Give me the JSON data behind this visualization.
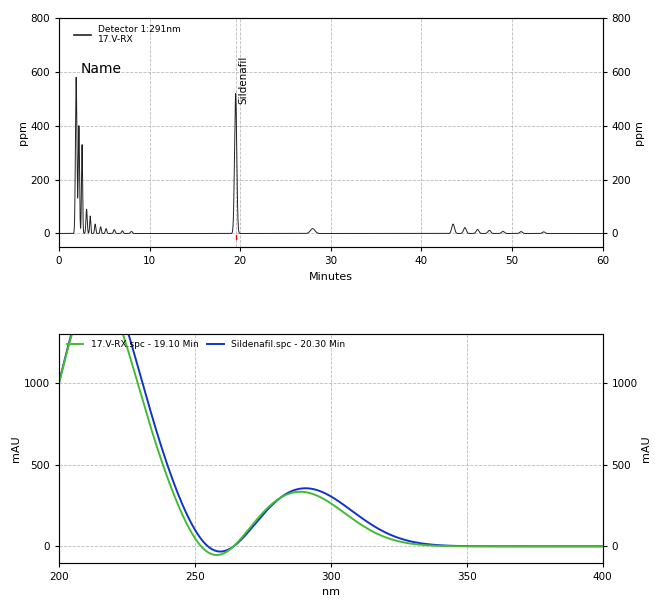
{
  "top_plot": {
    "xlim": [
      0,
      60
    ],
    "ylim": [
      -50,
      800
    ],
    "yticks": [
      0,
      200,
      400,
      600,
      800
    ],
    "xticks": [
      0,
      10,
      20,
      30,
      40,
      50,
      60
    ],
    "xlabel": "Minutes",
    "ylabel_left": "ppm",
    "ylabel_right": "ppm",
    "legend_line_label": "Detector 1:291nm\n17.V-RX",
    "legend_name_label": "Name",
    "sildenafil_annotation": "Sildenafil",
    "sildenafil_x": 19.5,
    "sildenafil_peak_y": 520,
    "red_marker_x": 19.5,
    "line_color": "#222222",
    "grid_color": "#bbbbbb",
    "background_color": "#ffffff"
  },
  "bottom_plot": {
    "xlim": [
      200,
      400
    ],
    "ylim": [
      -100,
      1300
    ],
    "yticks": [
      0,
      500,
      1000
    ],
    "xticks": [
      200,
      250,
      300,
      350,
      400
    ],
    "xlabel": "nm",
    "ylabel_left": "mAU",
    "ylabel_right": "mAU",
    "legend_green_label": "17.V-RX.spc - 19.10 Min",
    "legend_blue_label": "Sildenafil.spc - 20.30 Min",
    "green_color": "#44bb33",
    "blue_color": "#1133cc",
    "background_color": "#ffffff",
    "grid_color": "#bbbbbb"
  }
}
